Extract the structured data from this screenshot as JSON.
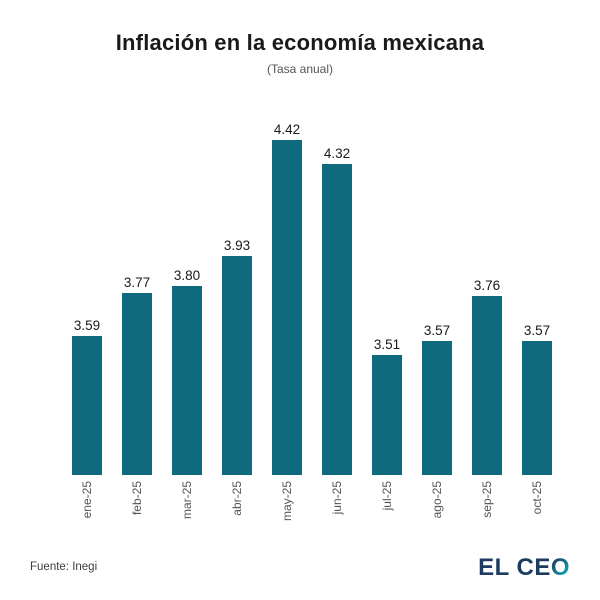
{
  "header": {
    "title": "Inflación en la economía mexicana",
    "subtitle": "(Tasa anual)"
  },
  "chart_data": {
    "type": "bar",
    "title": "Inflación en la economía mexicana",
    "subtitle": "(Tasa anual)",
    "categories": [
      "ene-25",
      "feb-25",
      "mar-25",
      "abr-25",
      "may-25",
      "jun-25",
      "jul-25",
      "ago-25",
      "sep-25",
      "oct-25"
    ],
    "values": [
      3.59,
      3.77,
      3.8,
      3.93,
      4.42,
      4.32,
      3.51,
      3.57,
      3.76,
      3.57
    ],
    "values_display": [
      "3.59",
      "3.77",
      "3.80",
      "3.93",
      "4.42",
      "4.32",
      "3.51",
      "3.57",
      "3.76",
      "3.57"
    ],
    "xlabel": "",
    "ylabel": "",
    "ylim": [
      3.0,
      4.5
    ],
    "grid": false,
    "legend": false,
    "bar_color": "#0e6a7c",
    "value_label_color": "#1a1a1a",
    "tick_label_color": "#555555"
  },
  "footer": {
    "source": "Fuente: Inegi",
    "logo_prefix": "EL CE",
    "logo_suffix": "O",
    "logo_navy": "#1d3a5f",
    "logo_teal": "#0fb0c2"
  }
}
